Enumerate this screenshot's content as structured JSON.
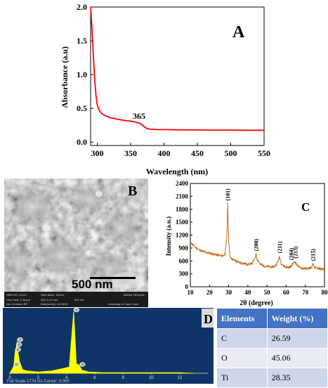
{
  "panelA": {
    "letter": "A",
    "xlabel": "Wavelength (nm)",
    "ylabel": "Absorbance (a.u)",
    "annotation": "365",
    "xticks": [
      "300",
      "350",
      "400",
      "450",
      "500",
      "550"
    ],
    "yticks": [
      "0.0",
      "0.5",
      "1.0",
      "1.5",
      "2.0"
    ]
  },
  "panelB": {
    "letter": "B",
    "scale_bar": "500 nm",
    "info": {
      "hv": "SEM HV: 3.0 kV",
      "mag": "SEM MAG: 100 kx",
      "brand": "MIRA3 TESCAN",
      "vf": "View field: 2.08 μm",
      "wd": "WD: 5.19 mm",
      "scale": "500 nm",
      "det": "Det: In-Beam SE",
      "date": "Date(m/d/y): 02/15/22",
      "univ": "University of Cape Town"
    }
  },
  "panelC": {
    "letter": "C",
    "xlabel": "2θ (degree)",
    "ylabel": "Intensity (a.u.)",
    "xticks": [
      "10",
      "20",
      "30",
      "40",
      "50",
      "60",
      "70",
      "80"
    ],
    "yticks": [
      "0",
      "300",
      "600",
      "900",
      "1200",
      "1500",
      "1800",
      "2100",
      "2400"
    ],
    "peak_labels": [
      "(101)",
      "(200)",
      "(211)",
      "(204)",
      "(213)",
      "(215)"
    ]
  },
  "panelD": {
    "letter": "D",
    "footer": "Full Scale 1774 cts Cursor: 0.000",
    "xticks": [
      "0",
      "2",
      "4",
      "6",
      "8",
      "10",
      "12"
    ],
    "peak_tags": [
      "C",
      "O",
      "Ti",
      "Ti",
      "Ti",
      "Ti"
    ]
  },
  "table": {
    "headers": [
      "Elements",
      "Weight (%)"
    ],
    "rows": [
      {
        "element": "C",
        "weight": "26.59"
      },
      {
        "element": "O",
        "weight": "45.06"
      },
      {
        "element": "Ti",
        "weight": "28.35"
      }
    ]
  },
  "chart_data": [
    {
      "type": "line",
      "title": "",
      "xlabel": "Wavelength (nm)",
      "ylabel": "Absorbance (a.u)",
      "xlim": [
        290,
        550
      ],
      "ylim": [
        -0.05,
        2.0
      ],
      "color": "#ff0000",
      "x": [
        290,
        292,
        294,
        296,
        298,
        300,
        303,
        306,
        310,
        315,
        320,
        330,
        340,
        350,
        360,
        365,
        370,
        375,
        380,
        390,
        400,
        420,
        450,
        480,
        500,
        520,
        550
      ],
      "y": [
        2.0,
        1.7,
        1.3,
        0.95,
        0.7,
        0.55,
        0.47,
        0.43,
        0.4,
        0.38,
        0.36,
        0.34,
        0.32,
        0.31,
        0.29,
        0.27,
        0.23,
        0.2,
        0.19,
        0.185,
        0.185,
        0.182,
        0.18,
        0.178,
        0.178,
        0.176,
        0.175
      ]
    },
    {
      "type": "line",
      "title": "",
      "xlabel": "2θ (degree)",
      "ylabel": "Intensity (a.u.)",
      "xlim": [
        10,
        80
      ],
      "ylim": [
        0,
        2400
      ],
      "color": "#c16a1b",
      "x": [
        10,
        12,
        14,
        16,
        18,
        20,
        22,
        24,
        26,
        27,
        28,
        29,
        29.5,
        30,
        30.5,
        31,
        32,
        34,
        36,
        38,
        40,
        42,
        43.5,
        44.3,
        45,
        46.5,
        48,
        50,
        52,
        54,
        55.5,
        56.5,
        57.5,
        59,
        61,
        62.5,
        63.5,
        64.5,
        65.5,
        67,
        69,
        71,
        73,
        74,
        75,
        77,
        80
      ],
      "y": [
        1040,
        940,
        880,
        830,
        800,
        780,
        760,
        740,
        720,
        720,
        760,
        1100,
        1930,
        1100,
        760,
        690,
        640,
        590,
        560,
        540,
        520,
        540,
        640,
        760,
        630,
        520,
        490,
        470,
        460,
        470,
        560,
        700,
        540,
        470,
        450,
        460,
        540,
        590,
        520,
        450,
        430,
        420,
        440,
        520,
        440,
        420,
        410
      ]
    },
    {
      "type": "line",
      "title": "",
      "xlabel": "",
      "ylabel": "",
      "xlim": [
        0,
        14
      ],
      "color": "#ffff00",
      "x": [
        0.0,
        0.15,
        0.277,
        0.38,
        0.45,
        0.525,
        0.6,
        0.7,
        0.9,
        1.2,
        2.0,
        3.0,
        4.2,
        4.511,
        4.7,
        4.932,
        5.1,
        5.6,
        6.5,
        8,
        10,
        12,
        13
      ],
      "y": [
        0,
        6,
        12,
        36,
        42,
        52,
        30,
        18,
        6,
        4,
        2,
        4,
        10,
        100,
        16,
        12,
        5,
        2,
        1,
        1,
        1,
        1,
        0
      ]
    }
  ]
}
